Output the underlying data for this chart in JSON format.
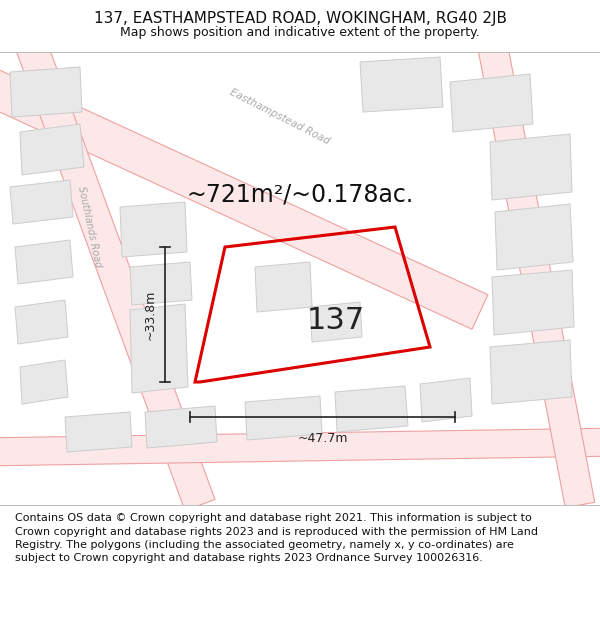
{
  "title": "137, EASTHAMPSTEAD ROAD, WOKINGHAM, RG40 2JB",
  "subtitle": "Map shows position and indicative extent of the property.",
  "area_label": "~721m²/~0.178ac.",
  "property_number": "137",
  "dim_vertical": "~33.8m",
  "dim_horizontal": "~47.7m",
  "footer_text": "Contains OS data © Crown copyright and database right 2021. This information is subject to Crown copyright and database rights 2023 and is reproduced with the permission of HM Land Registry. The polygons (including the associated geometry, namely x, y co-ordinates) are subject to Crown copyright and database rights 2023 Ordnance Survey 100026316.",
  "map_bg": "#ffffff",
  "header_bg": "#ffffff",
  "footer_bg": "#ffffff",
  "road_fill": "#fce8e8",
  "road_edge": "#f0a0a0",
  "building_fill": "#e8e8e8",
  "building_edge": "#cccccc",
  "property_edge_color": "#dd0000",
  "title_fontsize": 11,
  "subtitle_fontsize": 9,
  "area_fontsize": 17,
  "prop_num_fontsize": 22,
  "dim_fontsize": 9,
  "footer_fontsize": 8
}
